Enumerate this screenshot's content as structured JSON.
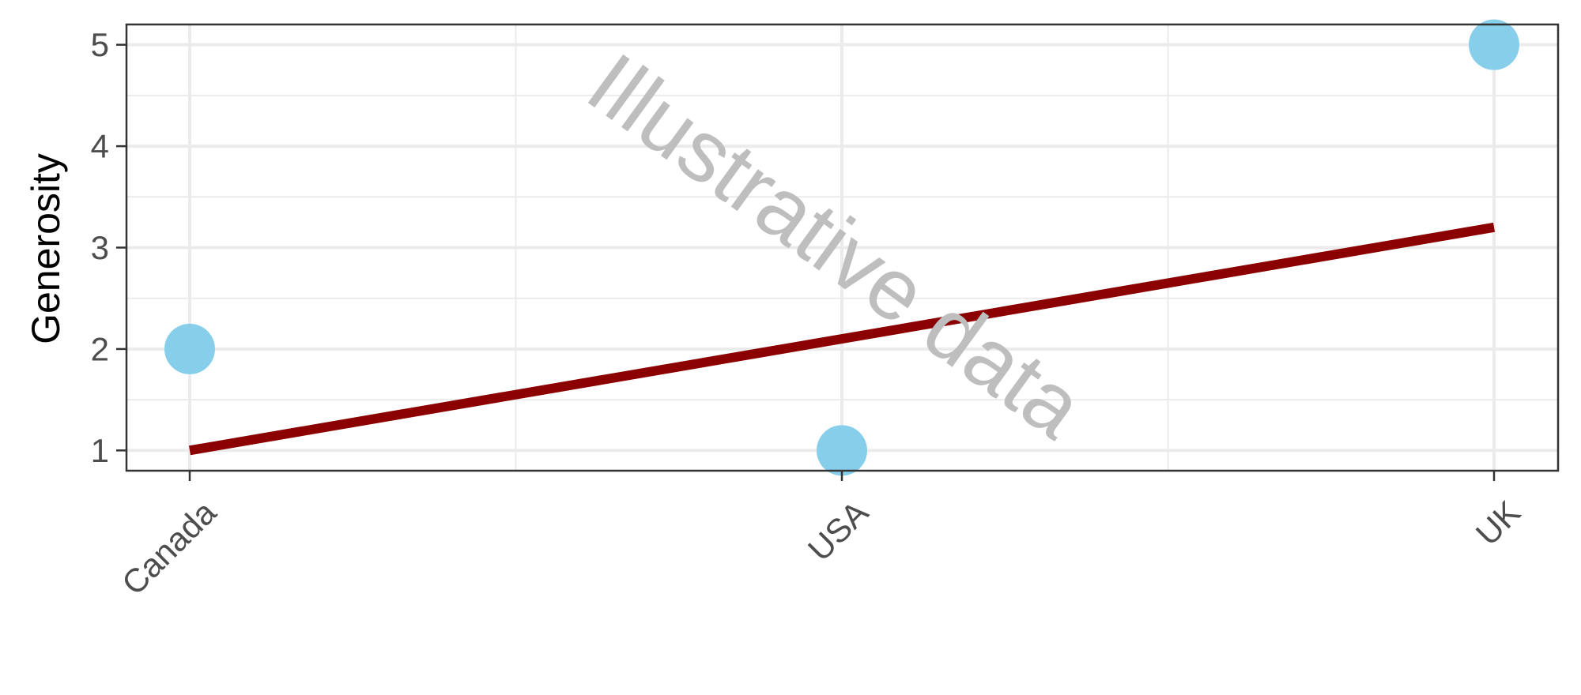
{
  "chart_data": {
    "type": "scatter",
    "title": "",
    "xlabel": "",
    "ylabel": "Generosity",
    "categories": [
      "Canada",
      "USA",
      "UK"
    ],
    "points": [
      {
        "x": "Canada",
        "y": 2
      },
      {
        "x": "USA",
        "y": 1
      },
      {
        "x": "UK",
        "y": 5
      }
    ],
    "trend_line": {
      "start": {
        "x": "Canada",
        "y": 1.0
      },
      "end": {
        "x": "UK",
        "y": 3.2
      }
    },
    "y_ticks": [
      1,
      2,
      3,
      4,
      5
    ],
    "ylim": [
      0.8,
      5.2
    ],
    "grid": true,
    "watermark": "Illustrative data",
    "colors": {
      "points": "#87ceeb",
      "trend_line": "#8b0000",
      "grid": "#ebebeb",
      "panel_border": "#333333"
    }
  }
}
